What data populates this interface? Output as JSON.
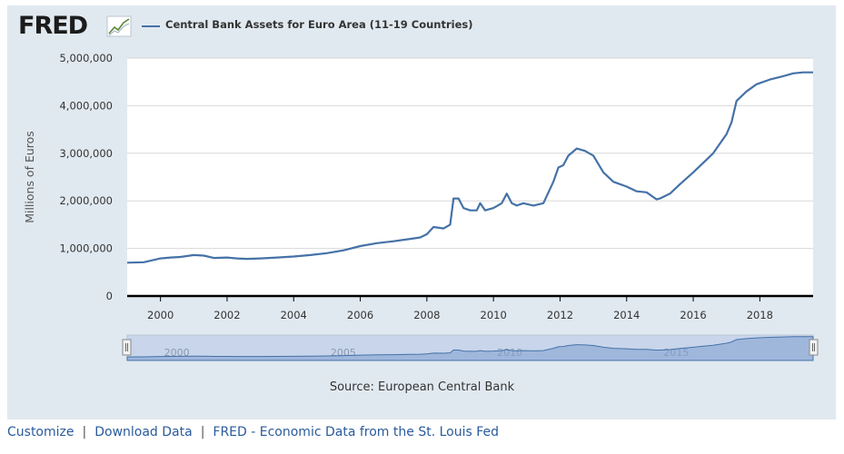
{
  "logo": {
    "text": "FRED"
  },
  "chart_data": {
    "type": "line",
    "title": "Central Bank Assets for Euro Area (11-19 Countries)",
    "ylabel": "Millions of Euros",
    "xlabel": "",
    "ylim": [
      0,
      5000000
    ],
    "xlim": [
      1999.0,
      2019.6
    ],
    "y_ticks": [
      0,
      1000000,
      2000000,
      3000000,
      4000000,
      5000000
    ],
    "y_tick_labels": [
      "0",
      "1,000,000",
      "2,000,000",
      "3,000,000",
      "4,000,000",
      "5,000,000"
    ],
    "x_ticks": [
      2000,
      2002,
      2004,
      2006,
      2008,
      2010,
      2012,
      2014,
      2016,
      2018
    ],
    "x_tick_labels": [
      "2000",
      "2002",
      "2004",
      "2006",
      "2008",
      "2010",
      "2012",
      "2014",
      "2016",
      "2018"
    ],
    "grid": true,
    "legend": "top-left",
    "series": [
      {
        "name": "Central Bank Assets for Euro Area (11-19 Countries)",
        "color": "#4572a7",
        "x": [
          1999.0,
          1999.5,
          2000.0,
          2000.3,
          2000.6,
          2001.0,
          2001.3,
          2001.6,
          2002.0,
          2002.3,
          2002.6,
          2003.0,
          2003.5,
          2004.0,
          2004.5,
          2005.0,
          2005.5,
          2006.0,
          2006.5,
          2007.0,
          2007.5,
          2007.8,
          2008.0,
          2008.2,
          2008.5,
          2008.7,
          2008.8,
          2008.95,
          2009.1,
          2009.3,
          2009.5,
          2009.6,
          2009.75,
          2010.0,
          2010.25,
          2010.4,
          2010.55,
          2010.7,
          2010.9,
          2011.2,
          2011.5,
          2011.8,
          2011.95,
          2012.1,
          2012.25,
          2012.5,
          2012.75,
          2013.0,
          2013.3,
          2013.6,
          2014.0,
          2014.3,
          2014.6,
          2014.9,
          2015.0,
          2015.3,
          2015.6,
          2016.0,
          2016.3,
          2016.6,
          2017.0,
          2017.15,
          2017.3,
          2017.6,
          2017.9,
          2018.3,
          2018.7,
          2019.0,
          2019.3,
          2019.6
        ],
        "values": [
          700000,
          710000,
          790000,
          810000,
          820000,
          860000,
          850000,
          800000,
          810000,
          790000,
          780000,
          790000,
          810000,
          830000,
          860000,
          900000,
          960000,
          1050000,
          1110000,
          1150000,
          1200000,
          1230000,
          1300000,
          1450000,
          1420000,
          1500000,
          2050000,
          2050000,
          1850000,
          1800000,
          1800000,
          1950000,
          1800000,
          1850000,
          1950000,
          2150000,
          1950000,
          1900000,
          1950000,
          1900000,
          1950000,
          2400000,
          2700000,
          2750000,
          2950000,
          3100000,
          3050000,
          2950000,
          2600000,
          2400000,
          2300000,
          2200000,
          2180000,
          2030000,
          2050000,
          2150000,
          2350000,
          2600000,
          2800000,
          3000000,
          3400000,
          3650000,
          4100000,
          4300000,
          4450000,
          4550000,
          4620000,
          4680000,
          4700000,
          4700000
        ]
      }
    ],
    "navigator": {
      "x_tick_labels": [
        "2000",
        "2005",
        "2010",
        "2015"
      ],
      "x_ticks": [
        2000,
        2005,
        2010,
        2015
      ]
    }
  },
  "source": "Source: European Central Bank",
  "footer": {
    "customize": "Customize",
    "download": "Download Data",
    "fred_link": "FRED - Economic Data from the St. Louis Fed",
    "separator": "|"
  }
}
